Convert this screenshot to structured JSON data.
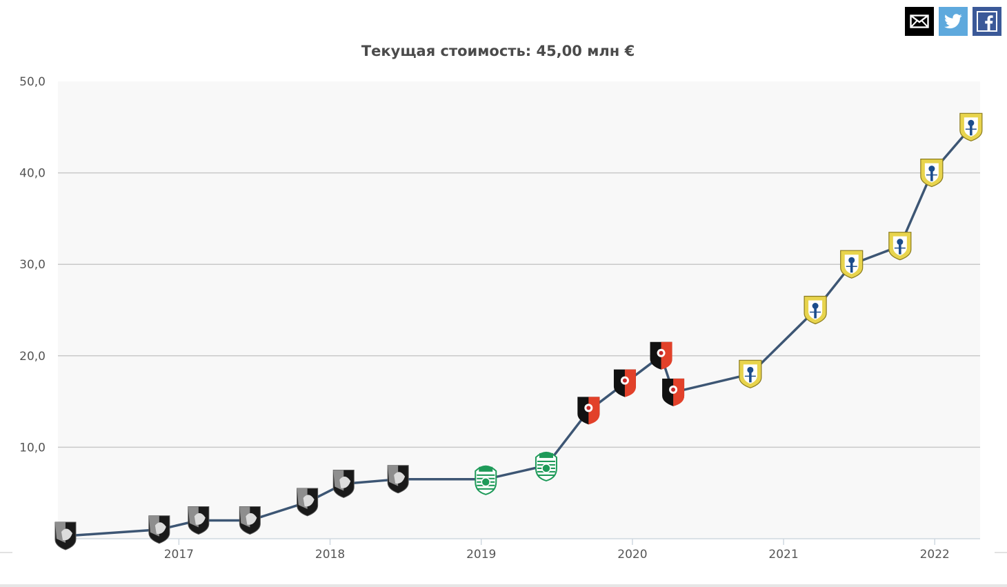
{
  "share": {
    "items": [
      {
        "name": "email",
        "icon": "envelope-icon",
        "color": "#000000"
      },
      {
        "name": "twitter",
        "icon": "twitter-bird-icon",
        "color": "#5ea9dd"
      },
      {
        "name": "facebook",
        "icon": "facebook-f-icon",
        "color": "#3b5998"
      }
    ]
  },
  "chart_data": {
    "type": "line",
    "title": "Текущая стоимость: 45,00 млн €",
    "xlabel": "",
    "ylabel": "",
    "y_ticks": [
      "10,0",
      "20,0",
      "30,0",
      "40,0",
      "50,0"
    ],
    "y_tick_values": [
      10,
      20,
      30,
      40,
      50
    ],
    "x_ticks": [
      "2017",
      "2018",
      "2019",
      "2020",
      "2021",
      "2022"
    ],
    "x_tick_values": [
      2017.0,
      2018.0,
      2019.0,
      2020.0,
      2021.0,
      2022.0
    ],
    "xlim": [
      2016.2,
      2022.3
    ],
    "ylim": [
      0,
      50
    ],
    "grid": true,
    "line_color": "#3d5674",
    "plot_background": "#f8f8f8",
    "clubs": {
      "vitoria": {
        "icon": "vitoria-guimaraes-crest-icon",
        "colors": [
          "#111111",
          "#9a9a9a"
        ]
      },
      "sporting": {
        "icon": "sporting-cp-crest-icon",
        "colors": [
          "#1e9a59",
          "#ffffff"
        ]
      },
      "rennes": {
        "icon": "stade-rennais-crest-icon",
        "colors": [
          "#e2412a",
          "#111111"
        ]
      },
      "leeds": {
        "icon": "leeds-united-crest-icon",
        "colors": [
          "#e8d44d",
          "#1c4d8c"
        ]
      }
    },
    "series": [
      {
        "values": [
          {
            "x": 2016.25,
            "y": 0.3,
            "club": "vitoria"
          },
          {
            "x": 2016.87,
            "y": 1.0,
            "club": "vitoria"
          },
          {
            "x": 2017.13,
            "y": 2.0,
            "club": "vitoria"
          },
          {
            "x": 2017.47,
            "y": 2.0,
            "club": "vitoria"
          },
          {
            "x": 2017.85,
            "y": 4.0,
            "club": "vitoria"
          },
          {
            "x": 2018.09,
            "y": 6.0,
            "club": "vitoria"
          },
          {
            "x": 2018.45,
            "y": 6.5,
            "club": "vitoria"
          },
          {
            "x": 2019.03,
            "y": 6.5,
            "club": "sporting"
          },
          {
            "x": 2019.43,
            "y": 8.0,
            "club": "sporting"
          },
          {
            "x": 2019.71,
            "y": 14.0,
            "club": "rennes"
          },
          {
            "x": 2019.95,
            "y": 17.0,
            "club": "rennes"
          },
          {
            "x": 2020.19,
            "y": 20.0,
            "club": "rennes"
          },
          {
            "x": 2020.27,
            "y": 16.0,
            "club": "rennes"
          },
          {
            "x": 2020.78,
            "y": 18.0,
            "club": "leeds"
          },
          {
            "x": 2021.21,
            "y": 25.0,
            "club": "leeds"
          },
          {
            "x": 2021.45,
            "y": 30.0,
            "club": "leeds"
          },
          {
            "x": 2021.77,
            "y": 32.0,
            "club": "leeds"
          },
          {
            "x": 2021.98,
            "y": 40.0,
            "club": "leeds"
          },
          {
            "x": 2022.24,
            "y": 45.0,
            "club": "leeds"
          }
        ]
      }
    ]
  }
}
